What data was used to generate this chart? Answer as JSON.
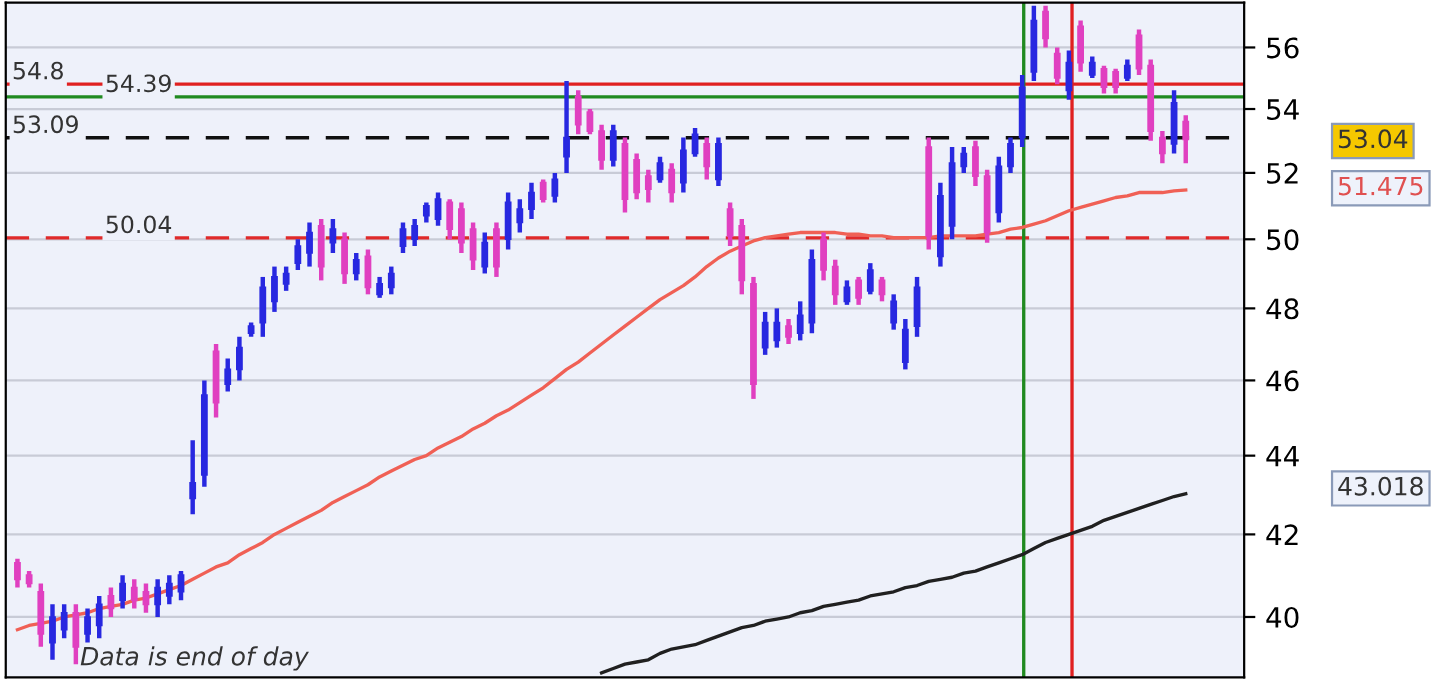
{
  "chart_data": {
    "type": "candlestick",
    "categories": [
      null,
      null,
      null,
      null,
      null,
      null,
      null,
      null,
      null,
      null,
      null,
      null,
      null,
      null,
      null,
      null,
      null,
      null,
      null,
      null,
      null,
      null,
      null,
      null,
      null,
      null,
      null,
      null,
      null,
      null,
      null,
      null,
      null,
      null,
      null,
      null,
      null,
      null,
      null,
      null,
      null,
      null,
      null,
      null,
      null,
      null,
      null,
      null,
      null,
      null,
      null,
      null,
      null,
      null,
      null,
      null,
      null,
      null,
      null,
      null,
      null,
      null,
      null,
      null,
      null,
      null,
      null,
      null,
      null,
      null,
      null,
      null,
      null,
      null,
      null,
      null,
      null,
      null,
      null,
      null,
      null,
      null,
      null,
      null,
      null,
      null,
      null,
      null,
      null,
      null,
      null,
      null,
      null,
      null,
      null,
      null,
      null,
      null,
      null,
      null,
      null
    ],
    "ohlc": [
      [
        41.3,
        41.4,
        40.7,
        40.9
      ],
      [
        41.0,
        41.1,
        40.7,
        40.8
      ],
      [
        40.6,
        40.8,
        39.3,
        39.6
      ],
      [
        39.4,
        40.3,
        39.0,
        40.0
      ],
      [
        39.7,
        40.3,
        39.5,
        40.1
      ],
      [
        40.1,
        40.3,
        38.9,
        39.3
      ],
      [
        39.6,
        40.2,
        39.4,
        40.0
      ],
      [
        39.8,
        40.5,
        39.5,
        40.3
      ],
      [
        40.5,
        40.7,
        40.0,
        40.2
      ],
      [
        40.4,
        41.0,
        40.2,
        40.8
      ],
      [
        40.7,
        40.9,
        40.2,
        40.4
      ],
      [
        40.6,
        40.8,
        40.1,
        40.3
      ],
      [
        40.3,
        40.9,
        40.0,
        40.7
      ],
      [
        40.5,
        41.0,
        40.3,
        40.8
      ],
      [
        40.6,
        41.1,
        40.4,
        41.0
      ],
      [
        42.9,
        44.4,
        42.5,
        43.3
      ],
      [
        43.5,
        46.0,
        43.2,
        45.6
      ],
      [
        46.8,
        47.0,
        45.0,
        45.4
      ],
      [
        45.9,
        46.6,
        45.7,
        46.3
      ],
      [
        46.3,
        47.2,
        46.0,
        46.9
      ],
      [
        47.3,
        47.6,
        47.2,
        47.5
      ],
      [
        47.6,
        48.9,
        47.2,
        48.6
      ],
      [
        48.2,
        49.2,
        47.9,
        48.9
      ],
      [
        48.7,
        49.2,
        48.5,
        49.0
      ],
      [
        49.3,
        50.0,
        49.1,
        49.8
      ],
      [
        49.6,
        50.5,
        49.2,
        50.2
      ],
      [
        50.4,
        50.6,
        48.8,
        49.2
      ],
      [
        49.9,
        50.6,
        49.6,
        50.3
      ],
      [
        50.0,
        50.2,
        48.7,
        49.0
      ],
      [
        49.0,
        49.6,
        48.8,
        49.4
      ],
      [
        49.5,
        49.7,
        48.4,
        48.6
      ],
      [
        48.4,
        48.9,
        48.3,
        48.7
      ],
      [
        48.6,
        49.2,
        48.4,
        49.0
      ],
      [
        49.8,
        50.5,
        49.6,
        50.3
      ],
      [
        50.0,
        50.6,
        49.8,
        50.4
      ],
      [
        50.7,
        51.1,
        50.5,
        51.0
      ],
      [
        50.6,
        51.4,
        50.4,
        51.2
      ],
      [
        51.1,
        51.2,
        50.0,
        50.3
      ],
      [
        50.9,
        51.1,
        49.6,
        49.9
      ],
      [
        50.3,
        50.5,
        49.1,
        49.4
      ],
      [
        49.2,
        50.2,
        49.0,
        49.9
      ],
      [
        50.3,
        50.5,
        48.9,
        49.2
      ],
      [
        50.0,
        51.4,
        49.7,
        51.1
      ],
      [
        50.5,
        51.2,
        50.2,
        50.9
      ],
      [
        50.9,
        51.7,
        50.6,
        51.4
      ],
      [
        51.7,
        51.8,
        51.1,
        51.2
      ],
      [
        51.3,
        52.0,
        51.1,
        51.8
      ],
      [
        52.5,
        54.9,
        52.0,
        53.1
      ],
      [
        54.4,
        54.6,
        53.2,
        53.5
      ],
      [
        53.9,
        54.0,
        53.2,
        53.3
      ],
      [
        53.3,
        53.5,
        52.1,
        52.4
      ],
      [
        52.4,
        53.5,
        52.2,
        53.3
      ],
      [
        52.9,
        53.1,
        50.8,
        51.2
      ],
      [
        52.4,
        52.6,
        51.2,
        51.4
      ],
      [
        51.9,
        52.1,
        51.1,
        51.5
      ],
      [
        51.8,
        52.5,
        51.7,
        52.3
      ],
      [
        52.1,
        52.3,
        51.1,
        51.4
      ],
      [
        51.7,
        53.1,
        51.4,
        52.7
      ],
      [
        52.6,
        53.4,
        52.5,
        53.2
      ],
      [
        52.9,
        53.1,
        51.8,
        52.2
      ],
      [
        51.8,
        53.1,
        51.6,
        52.9
      ],
      [
        50.9,
        51.1,
        49.8,
        50.1
      ],
      [
        50.4,
        50.6,
        48.4,
        48.8
      ],
      [
        48.7,
        48.9,
        45.5,
        45.9
      ],
      [
        46.9,
        47.9,
        46.7,
        47.6
      ],
      [
        47.1,
        48.0,
        46.9,
        47.6
      ],
      [
        47.5,
        47.7,
        47.0,
        47.2
      ],
      [
        47.3,
        48.2,
        47.1,
        47.8
      ],
      [
        47.6,
        49.7,
        47.3,
        49.4
      ],
      [
        50.0,
        50.2,
        48.8,
        49.1
      ],
      [
        49.2,
        49.4,
        48.1,
        48.4
      ],
      [
        48.2,
        48.8,
        48.1,
        48.6
      ],
      [
        48.8,
        48.9,
        48.1,
        48.3
      ],
      [
        48.5,
        49.3,
        48.4,
        49.1
      ],
      [
        48.8,
        48.9,
        48.2,
        48.4
      ],
      [
        47.6,
        48.4,
        47.4,
        48.2
      ],
      [
        46.5,
        47.7,
        46.3,
        47.4
      ],
      [
        47.5,
        48.9,
        47.2,
        48.6
      ],
      [
        52.8,
        53.1,
        49.7,
        50.1
      ],
      [
        49.5,
        51.7,
        49.2,
        51.3
      ],
      [
        50.4,
        52.8,
        50.0,
        52.3
      ],
      [
        52.2,
        52.8,
        52.0,
        52.6
      ],
      [
        52.8,
        53.0,
        51.6,
        51.9
      ],
      [
        51.9,
        52.1,
        49.9,
        50.2
      ],
      [
        50.8,
        52.5,
        50.5,
        52.2
      ],
      [
        52.2,
        53.1,
        52.0,
        52.9
      ],
      [
        53.1,
        55.1,
        52.8,
        54.7
      ],
      [
        55.2,
        57.4,
        54.9,
        56.9
      ],
      [
        57.2,
        57.4,
        56.0,
        56.3
      ],
      [
        55.8,
        56.0,
        54.8,
        55.0
      ],
      [
        54.6,
        55.9,
        54.3,
        55.5
      ],
      [
        56.7,
        56.9,
        55.2,
        55.5
      ],
      [
        55.1,
        55.7,
        55.0,
        55.5
      ],
      [
        55.3,
        55.4,
        54.5,
        54.7
      ],
      [
        55.2,
        55.3,
        54.5,
        54.7
      ],
      [
        55.0,
        55.6,
        54.9,
        55.4
      ],
      [
        56.4,
        56.6,
        55.1,
        55.3
      ],
      [
        55.4,
        55.6,
        53.0,
        53.3
      ],
      [
        53.1,
        53.3,
        52.3,
        52.6
      ],
      [
        52.9,
        54.6,
        52.6,
        54.2
      ],
      [
        53.6,
        53.8,
        52.3,
        53.04
      ]
    ],
    "colors": [
      "#e040c0",
      "#e040c0",
      "#e040c0",
      "#2828e0",
      "#2828e0",
      "#e040c0",
      "#2828e0",
      "#2828e0",
      "#e040c0",
      "#2828e0",
      "#e040c0",
      "#e040c0",
      "#2828e0",
      "#2828e0",
      "#2828e0",
      "#2828e0",
      "#2828e0",
      "#e040c0",
      "#2828e0",
      "#2828e0",
      "#2828e0",
      "#2828e0",
      "#2828e0",
      "#2828e0",
      "#2828e0",
      "#2828e0",
      "#e040c0",
      "#2828e0",
      "#e040c0",
      "#2828e0",
      "#e040c0",
      "#2828e0",
      "#2828e0",
      "#2828e0",
      "#2828e0",
      "#2828e0",
      "#2828e0",
      "#e040c0",
      "#e040c0",
      "#e040c0",
      "#2828e0",
      "#e040c0",
      "#2828e0",
      "#2828e0",
      "#2828e0",
      "#e040c0",
      "#2828e0",
      "#2828e0",
      "#e040c0",
      "#e040c0",
      "#e040c0",
      "#2828e0",
      "#e040c0",
      "#e040c0",
      "#e040c0",
      "#2828e0",
      "#e040c0",
      "#2828e0",
      "#2828e0",
      "#e040c0",
      "#2828e0",
      "#e040c0",
      "#e040c0",
      "#e040c0",
      "#2828e0",
      "#2828e0",
      "#e040c0",
      "#2828e0",
      "#2828e0",
      "#e040c0",
      "#e040c0",
      "#2828e0",
      "#e040c0",
      "#2828e0",
      "#e040c0",
      "#2828e0",
      "#2828e0",
      "#2828e0",
      "#e040c0",
      "#2828e0",
      "#2828e0",
      "#2828e0",
      "#e040c0",
      "#e040c0",
      "#2828e0",
      "#2828e0",
      "#2828e0",
      "#2828e0",
      "#e040c0",
      "#e040c0",
      "#2828e0",
      "#e040c0",
      "#2828e0",
      "#e040c0",
      "#e040c0",
      "#2828e0",
      "#e040c0",
      "#e040c0",
      "#e040c0",
      "#2828e0",
      "#e040c0"
    ],
    "series": [
      {
        "type": "line",
        "color": "#f06055",
        "values": [
          39.7,
          39.8,
          39.85,
          39.9,
          40.0,
          40.05,
          40.1,
          40.2,
          40.25,
          40.3,
          40.4,
          40.45,
          40.55,
          40.65,
          40.75,
          40.9,
          41.05,
          41.2,
          41.3,
          41.5,
          41.65,
          41.8,
          42.0,
          42.15,
          42.3,
          42.45,
          42.6,
          42.8,
          42.95,
          43.1,
          43.25,
          43.45,
          43.6,
          43.75,
          43.9,
          44.0,
          44.2,
          44.35,
          44.5,
          44.7,
          44.85,
          45.05,
          45.2,
          45.4,
          45.6,
          45.8,
          46.05,
          46.3,
          46.5,
          46.75,
          47.0,
          47.25,
          47.5,
          47.75,
          48.0,
          48.25,
          48.45,
          48.65,
          48.9,
          49.2,
          49.45,
          49.65,
          49.8,
          49.95,
          50.05,
          50.1,
          50.15,
          50.2,
          50.2,
          50.2,
          50.2,
          50.15,
          50.15,
          50.1,
          50.1,
          50.05,
          50.05,
          50.05,
          50.05,
          50.1,
          50.1,
          50.1,
          50.1,
          50.15,
          50.2,
          50.3,
          50.35,
          50.45,
          50.55,
          50.7,
          50.85,
          50.95,
          51.05,
          51.15,
          51.25,
          51.3,
          51.4,
          51.4,
          51.4,
          51.45,
          51.475
        ]
      },
      {
        "type": "line",
        "color": "#202020",
        "values": [
          null,
          null,
          null,
          null,
          null,
          null,
          null,
          null,
          null,
          null,
          null,
          null,
          null,
          null,
          null,
          null,
          null,
          null,
          null,
          null,
          null,
          null,
          null,
          null,
          null,
          null,
          null,
          null,
          null,
          null,
          null,
          null,
          null,
          null,
          null,
          null,
          null,
          null,
          null,
          null,
          null,
          null,
          null,
          null,
          null,
          null,
          null,
          null,
          null,
          null,
          38.7,
          38.8,
          38.9,
          38.95,
          39.0,
          39.15,
          39.25,
          39.3,
          39.35,
          39.45,
          39.55,
          39.65,
          39.75,
          39.8,
          39.9,
          39.95,
          40.0,
          40.1,
          40.15,
          40.25,
          40.3,
          40.35,
          40.4,
          40.5,
          40.55,
          40.6,
          40.7,
          40.75,
          40.85,
          40.9,
          40.95,
          41.05,
          41.1,
          41.2,
          41.3,
          41.4,
          41.5,
          41.65,
          41.8,
          41.9,
          42.0,
          42.1,
          42.2,
          42.35,
          42.45,
          42.55,
          42.65,
          42.75,
          42.85,
          42.95,
          43.018
        ]
      }
    ],
    "ref_lines": [
      {
        "axis": "y",
        "value": 54.8,
        "label": "54.8",
        "color": "#e02020",
        "line_style": "solid"
      },
      {
        "axis": "y",
        "value": 54.39,
        "label": "54.39",
        "color": "#208a20",
        "line_style": "solid"
      },
      {
        "axis": "y",
        "value": 53.09,
        "label": "53.09",
        "color": "#101010",
        "line_style": "dashed"
      },
      {
        "axis": "y",
        "value": 50.04,
        "label": "50.04",
        "color": "#e02a2a",
        "line_style": "dashed"
      }
    ],
    "annotations": [
      "53.04",
      "51.475",
      "43.018",
      "Data is end of day"
    ],
    "log": "y",
    "ylim": [
      38.6,
      57.5
    ],
    "yticks": [
      40,
      42,
      44,
      46,
      48,
      50,
      52,
      54,
      56
    ],
    "grid": "y"
  }
}
